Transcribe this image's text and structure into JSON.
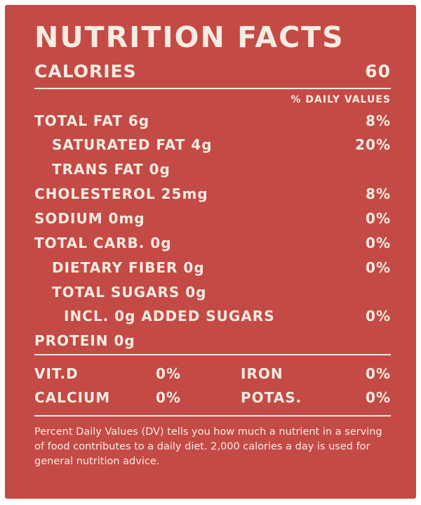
{
  "title": "NUTRITION FACTS",
  "calories": {
    "label": "CALORIES",
    "value": "60"
  },
  "dv_header": "% DAILY VALUES",
  "nutrients": [
    {
      "label": "TOTAL FAT 6g",
      "dv": "8%"
    },
    {
      "label": "SATURATED FAT 4g",
      "dv": "20%"
    },
    {
      "label": "TRANS FAT 0g",
      "dv": ""
    },
    {
      "label": "CHOLESTEROL 25mg",
      "dv": "8%"
    },
    {
      "label": "SODIUM 0mg",
      "dv": "0%"
    },
    {
      "label": "TOTAL CARB. 0g",
      "dv": "0%"
    },
    {
      "label": "DIETARY FIBER 0g",
      "dv": "0%"
    },
    {
      "label": "TOTAL SUGARS 0g",
      "dv": ""
    },
    {
      "label": "INCL. 0g ADDED SUGARS",
      "dv": "0%"
    },
    {
      "label": "PROTEIN 0g",
      "dv": ""
    }
  ],
  "vitamins": [
    {
      "label": "VIT.D",
      "dv": "0%"
    },
    {
      "label": "IRON",
      "dv": "0%"
    },
    {
      "label": "CALCIUM",
      "dv": "0%"
    },
    {
      "label": "POTAS.",
      "dv": "0%"
    }
  ],
  "footnote": "Percent Daily Values (DV) tells you how much a nutrient in a serving of food contributes to a daily diet. 2,000 calories a day is used for general nutrition advice.",
  "colors": {
    "background": "#c44a46",
    "text": "#f7ece2"
  }
}
